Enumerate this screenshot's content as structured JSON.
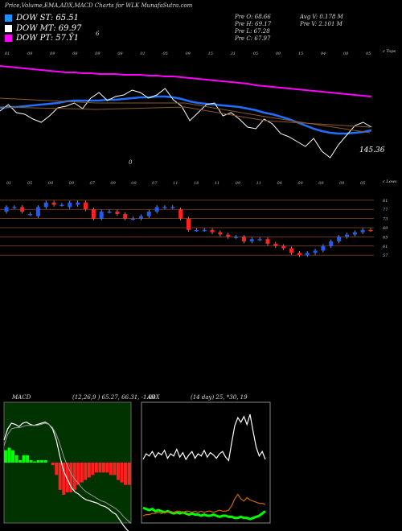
{
  "header": {
    "title": "Price,Volume,EMA,ADX,MACD Charts for WLK MunafaSutra.com"
  },
  "legend": [
    {
      "label": "DOW ST:",
      "value": "65.51",
      "color": "#1e90ff"
    },
    {
      "label": "DOW MT:",
      "value": "69.97",
      "color": "#ffffff"
    },
    {
      "label": "DOW PT:",
      "value": "57.Ÿ1",
      "color": "#ff00ff"
    }
  ],
  "quote": {
    "open": "Pre  O: 68.66",
    "high": "Pre  H: 69.17",
    "low": "Pre  L: 67.28",
    "close": "Pre  C: 67.97",
    "avg_volume": "Avg V: 0.178 M",
    "volume": "Pre  V: 2.101 M"
  },
  "panel_labels": {
    "ema_scale": "c Tops",
    "ema_value": "145.36",
    "price_scale": "c Lows",
    "macd_title": "MACD",
    "macd_params": "(12,26,9 ) 65.27, 66.31, -1.04",
    "adx_title": "ADX",
    "adx_params": "(14  day) 25,  *30,  19"
  },
  "top_date_labels": [
    "01",
    "09",
    "09",
    "08",
    "09",
    "08",
    "01",
    "05",
    "09",
    "15",
    "31",
    "05",
    "09",
    "15",
    "04",
    "08",
    "05"
  ],
  "mid_date_labels": [
    "01",
    "05",
    "09",
    "09",
    "07",
    "09",
    "09",
    "07",
    "11",
    "18",
    "11",
    "09",
    "11",
    "04",
    "09",
    "09",
    "09",
    "05"
  ],
  "stray_marks": [
    "6",
    "0",
    "6"
  ],
  "chart_data": [
    {
      "type": "line",
      "title": "EMA",
      "series": [
        {
          "name": "",
          "color": "#ff00ff",
          "values": [
            88,
            87,
            86,
            85,
            84,
            83,
            82,
            81,
            80,
            80,
            79,
            79,
            78,
            78,
            78,
            77,
            77,
            77,
            76,
            76,
            75,
            75,
            74,
            73,
            72,
            71,
            70,
            69,
            68,
            67,
            66,
            64,
            63,
            62,
            61,
            60,
            59,
            58,
            57,
            56,
            55,
            54,
            53,
            52,
            51,
            50
          ]
        },
        {
          "name": "",
          "color": "#2070ff",
          "values": [
            36,
            37,
            37,
            38,
            39,
            40,
            41,
            42,
            44,
            45,
            45,
            45,
            45,
            46,
            46,
            47,
            48,
            49,
            49,
            50,
            50,
            49,
            47,
            44,
            42,
            41,
            40,
            39,
            38,
            37,
            35,
            33,
            30,
            28,
            25,
            22,
            18,
            14,
            10,
            7,
            5,
            4,
            4,
            5,
            6,
            8
          ]
        },
        {
          "name": "",
          "color": "#ffffff",
          "values": [
            32,
            40,
            30,
            28,
            22,
            18,
            26,
            36,
            38,
            42,
            35,
            48,
            55,
            45,
            50,
            52,
            58,
            55,
            48,
            52,
            60,
            46,
            38,
            20,
            30,
            40,
            42,
            26,
            30,
            22,
            12,
            10,
            22,
            16,
            4,
            0,
            -6,
            -12,
            -2,
            -18,
            -26,
            -10,
            2,
            14,
            18,
            12
          ]
        }
      ]
    },
    {
      "type": "bar",
      "title": "Price",
      "categories": [
        "1",
        "2",
        "3",
        "4",
        "5",
        "6",
        "7",
        "8",
        "9",
        "10",
        "11",
        "12",
        "13",
        "14",
        "15",
        "16",
        "17",
        "18",
        "19",
        "20",
        "21",
        "22",
        "23",
        "24",
        "25",
        "26",
        "27",
        "28",
        "29",
        "30",
        "31",
        "32",
        "33",
        "34",
        "35",
        "36",
        "37",
        "38",
        "39",
        "40",
        "41",
        "42",
        "43",
        "44",
        "45",
        "46",
        "47"
      ],
      "series": [
        {
          "name": "open",
          "values": [
            76,
            78,
            78,
            75,
            74,
            78,
            80,
            79,
            78,
            79,
            80,
            77,
            73,
            76,
            76,
            75,
            73,
            73,
            74,
            76,
            78,
            78,
            77,
            73,
            68,
            68,
            68,
            67,
            66,
            65,
            65,
            63,
            64,
            64,
            62,
            61,
            60,
            58,
            57,
            58,
            59,
            61,
            63,
            65,
            66,
            67,
            68
          ]
        },
        {
          "name": "close",
          "values": [
            78,
            78,
            76,
            75,
            78,
            80,
            79,
            79,
            80,
            80,
            77,
            73,
            76,
            76,
            75,
            73,
            73,
            74,
            76,
            78,
            78,
            78,
            73,
            68,
            68,
            68,
            67,
            66,
            65,
            65,
            63,
            64,
            64,
            62,
            61,
            60,
            58,
            57,
            58,
            59,
            61,
            63,
            65,
            66,
            67,
            68,
            67.97
          ]
        }
      ]
    },
    {
      "type": "line",
      "title": "MACD",
      "series": [
        {
          "name": "",
          "color": "#ffffff",
          "values": [
            2,
            3,
            3.5,
            3.4,
            3.2,
            3.5,
            3.6,
            3.4,
            3.3,
            3.4,
            3.5,
            3.6,
            3.4,
            3.0,
            2.0,
            0.5,
            -0.8,
            -1.5,
            -2.2,
            -2.6,
            -2.8,
            -3.1,
            -3.3,
            -3.4,
            -3.5,
            -3.6,
            -3.8,
            -3.9,
            -4.1,
            -4.4,
            -4.6,
            -5.1,
            -5.6,
            -6.0,
            -6.3
          ]
        },
        {
          "name": "",
          "color": "#9a9a9a",
          "values": [
            1.5,
            2.5,
            3,
            3.1,
            3.1,
            3.2,
            3.3,
            3.3,
            3.3,
            3.3,
            3.4,
            3.5,
            3.4,
            3.1,
            2.5,
            1.6,
            0.5,
            -0.3,
            -1.0,
            -1.5,
            -1.9,
            -2.3,
            -2.6,
            -2.8,
            -3.0,
            -3.2,
            -3.4,
            -3.5,
            -3.7,
            -3.9,
            -4.1,
            -4.4,
            -4.8,
            -5.1,
            -5.4
          ]
        },
        {
          "name": "",
          "color": "#00ff00",
          "values": [
            0.5,
            0.6,
            0.5,
            0.3,
            0.1,
            0.3,
            0.3,
            0.1,
            0.05,
            0.1,
            0.1,
            0.1,
            0.0,
            -0.1,
            -0.5,
            -1.1,
            -1.3,
            -1.2,
            -1.2,
            -1.1,
            -0.9,
            -0.8,
            -0.7,
            -0.6,
            -0.5,
            -0.4,
            -0.4,
            -0.4,
            -0.4,
            -0.5,
            -0.5,
            -0.7,
            -0.8,
            -0.9,
            -0.9
          ]
        }
      ]
    },
    {
      "type": "line",
      "title": "ADX",
      "series": [
        {
          "name": "",
          "color": "#ffffff",
          "values": [
            55,
            60,
            58,
            62,
            57,
            61,
            59,
            63,
            56,
            60,
            58,
            64,
            57,
            61,
            55,
            59,
            62,
            56,
            60,
            58,
            63,
            57,
            61,
            59,
            56,
            60,
            62,
            57,
            54,
            70,
            85,
            92,
            88,
            93,
            86,
            95,
            80,
            66,
            58,
            62,
            55
          ]
        },
        {
          "name": "",
          "color": "#00ff00",
          "values": [
            12,
            11,
            10,
            11,
            9,
            10,
            9,
            8,
            9,
            8,
            7,
            8,
            7,
            8,
            7,
            6,
            7,
            6,
            6,
            5,
            6,
            5,
            5,
            6,
            5,
            4,
            5,
            5,
            4,
            4,
            3,
            3,
            4,
            3,
            3,
            2,
            3,
            4,
            5,
            7,
            9
          ]
        },
        {
          "name": "",
          "color": "#cc6600",
          "values": [
            5,
            6,
            6,
            7,
            7,
            8,
            7,
            8,
            8,
            9,
            8,
            9,
            9,
            8,
            9,
            9,
            8,
            9,
            8,
            9,
            8,
            9,
            9,
            8,
            9,
            10,
            9,
            9,
            10,
            14,
            20,
            24,
            20,
            18,
            21,
            19,
            18,
            17,
            16,
            16,
            15
          ]
        }
      ]
    }
  ]
}
